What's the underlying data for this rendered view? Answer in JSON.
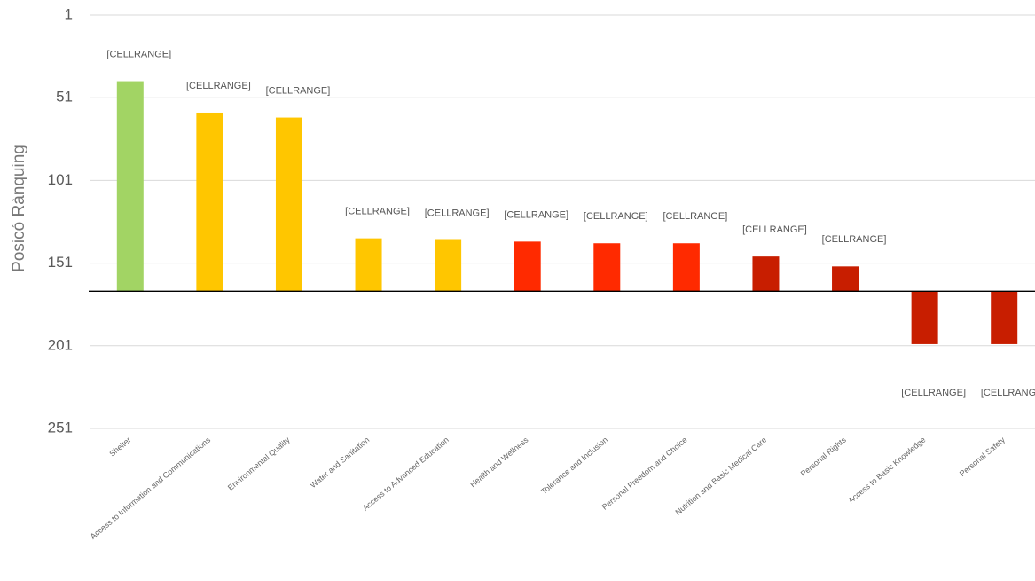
{
  "chart_data": {
    "type": "bar",
    "y_label": "Posicó Rànquing",
    "categories": [
      "Shelter",
      "Access to Information and Communications",
      "Environmental Quality",
      "Water and Sanitation",
      "Access to Advanced Education",
      "Health and Wellness",
      "Tolerance and Inclusion",
      "Personal Freedom and Choice",
      "Nutrition and Basic Medical Care",
      "Personal Rights",
      "Access to Basic Knowledge",
      "Personal Safety"
    ],
    "values": [
      41,
      60,
      63,
      136,
      137,
      138,
      139,
      139,
      147,
      153,
      200,
      200
    ],
    "value_labels": [
      "[CELLRANGE]",
      "[CELLRANGE]",
      "[CELLRANGE]",
      "[CELLRANGE]",
      "[CELLRANGE]",
      "[CELLRANGE]",
      "[CELLRANGE]",
      "[CELLRANGE]",
      "[CELLRANGE]",
      "[CELLRANGE]",
      "[CELLRANGE]",
      "[CELLRANGE]"
    ],
    "colors": [
      "#a2d464",
      "#ffc600",
      "#ffc600",
      "#ffc600",
      "#ffc600",
      "#ff2a00",
      "#ff2a00",
      "#ff2a00",
      "#c81e00",
      "#c81e00",
      "#c81e00",
      "#c81e00"
    ],
    "ylim": [
      1,
      251
    ],
    "yticks": [
      1,
      51,
      101,
      151,
      201,
      251
    ],
    "y_reversed": true,
    "axis_crossing": 168,
    "grid": true
  }
}
